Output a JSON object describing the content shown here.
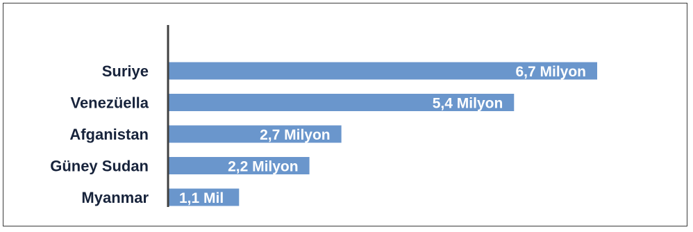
{
  "chart_data": {
    "type": "bar",
    "orientation": "horizontal",
    "categories": [
      "Suriye",
      "Venezüella",
      "Afganistan",
      "Güney Sudan",
      "Myanmar"
    ],
    "values": [
      6.7,
      5.4,
      2.7,
      2.2,
      1.1
    ],
    "value_labels": [
      "6,7 Milyon",
      "5,4 Milyon",
      "2,7 Milyon",
      "2,2 Milyon",
      "1,1 Mil"
    ],
    "xlim": [
      0,
      6.7
    ],
    "grid": false,
    "bar_color": "#6a96cc",
    "axis_color": "#404040",
    "label_color": "#17233b"
  }
}
